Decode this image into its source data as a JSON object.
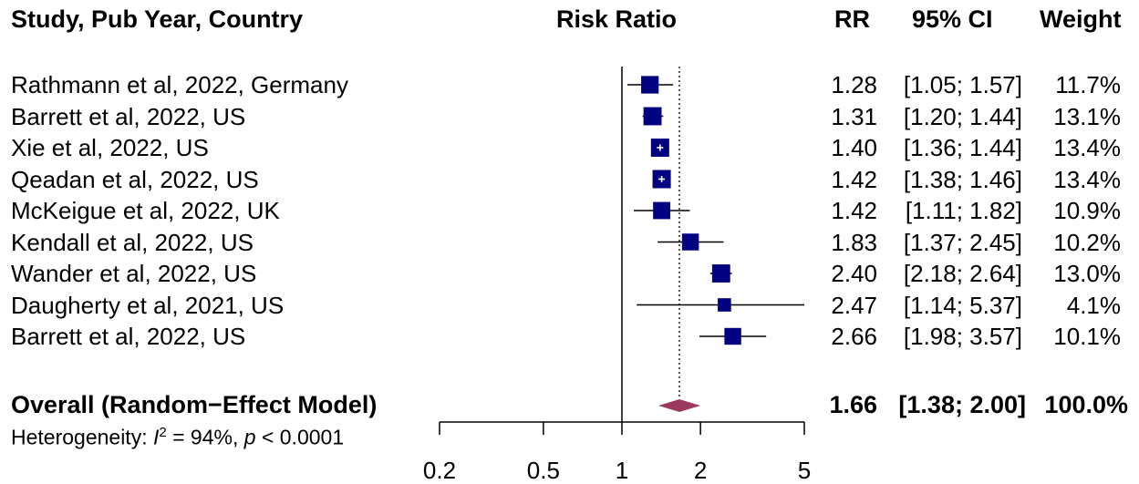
{
  "headers": {
    "study": "Study, Pub Year, Country",
    "plot": "Risk Ratio",
    "rr": "RR",
    "ci": "95% CI",
    "weight": "Weight"
  },
  "heterogeneity": {
    "prefix": "Heterogeneity: ",
    "i_symbol": "I",
    "i_sup": "2",
    "i_value": " = 94%, ",
    "p_symbol": "p",
    "p_value": " < 0.0001"
  },
  "colors": {
    "study_marker": "#000080",
    "summary_diamond": "#9b3a5e",
    "line": "#000000"
  },
  "chart_data": {
    "type": "forest",
    "measure": "Risk Ratio",
    "x_scale": "log",
    "xlim": [
      0.2,
      5
    ],
    "x_ticks": [
      0.2,
      0.5,
      1,
      2,
      5
    ],
    "x_tick_labels": [
      "0.2",
      "0.5",
      "1",
      "2",
      "5"
    ],
    "reference_line": 1,
    "summary_line": 1.66,
    "studies": [
      {
        "label": "Rathmann et al, 2022, Germany",
        "rr": 1.28,
        "lo": 1.05,
        "hi": 1.57,
        "rr_text": "1.28",
        "ci_text": "[1.05; 1.57]",
        "weight": 11.7,
        "weight_text": "11.7%"
      },
      {
        "label": "Barrett et al, 2022, US",
        "rr": 1.31,
        "lo": 1.2,
        "hi": 1.44,
        "rr_text": "1.31",
        "ci_text": "[1.20; 1.44]",
        "weight": 13.1,
        "weight_text": "13.1%"
      },
      {
        "label": "Xie et al, 2022, US",
        "rr": 1.4,
        "lo": 1.36,
        "hi": 1.44,
        "rr_text": "1.40",
        "ci_text": "[1.36; 1.44]",
        "weight": 13.4,
        "weight_text": "13.4%"
      },
      {
        "label": "Qeadan et al, 2022, US",
        "rr": 1.42,
        "lo": 1.38,
        "hi": 1.46,
        "rr_text": "1.42",
        "ci_text": "[1.38; 1.46]",
        "weight": 13.4,
        "weight_text": "13.4%"
      },
      {
        "label": "McKeigue et al, 2022, UK",
        "rr": 1.42,
        "lo": 1.11,
        "hi": 1.82,
        "rr_text": "1.42",
        "ci_text": "[1.11; 1.82]",
        "weight": 10.9,
        "weight_text": "10.9%"
      },
      {
        "label": "Kendall et al, 2022, US",
        "rr": 1.83,
        "lo": 1.37,
        "hi": 2.45,
        "rr_text": "1.83",
        "ci_text": "[1.37; 2.45]",
        "weight": 10.2,
        "weight_text": "10.2%"
      },
      {
        "label": "Wander et al, 2022, US",
        "rr": 2.4,
        "lo": 2.18,
        "hi": 2.64,
        "rr_text": "2.40",
        "ci_text": "[2.18; 2.64]",
        "weight": 13.0,
        "weight_text": "13.0%"
      },
      {
        "label": "Daugherty et al, 2021, US",
        "rr": 2.47,
        "lo": 1.14,
        "hi": 5.37,
        "rr_text": "2.47",
        "ci_text": "[1.14; 5.37]",
        "weight": 4.1,
        "weight_text": "4.1%"
      },
      {
        "label": "Barrett et al, 2022, US",
        "rr": 2.66,
        "lo": 1.98,
        "hi": 3.57,
        "rr_text": "2.66",
        "ci_text": "[1.98; 3.57]",
        "weight": 10.1,
        "weight_text": "10.1%"
      }
    ],
    "overall": {
      "label": "Overall (Random−Effect Model)",
      "rr": 1.66,
      "lo": 1.38,
      "hi": 2.0,
      "rr_text": "1.66",
      "ci_text": "[1.38; 2.00]",
      "weight_text": "100.0%"
    }
  }
}
